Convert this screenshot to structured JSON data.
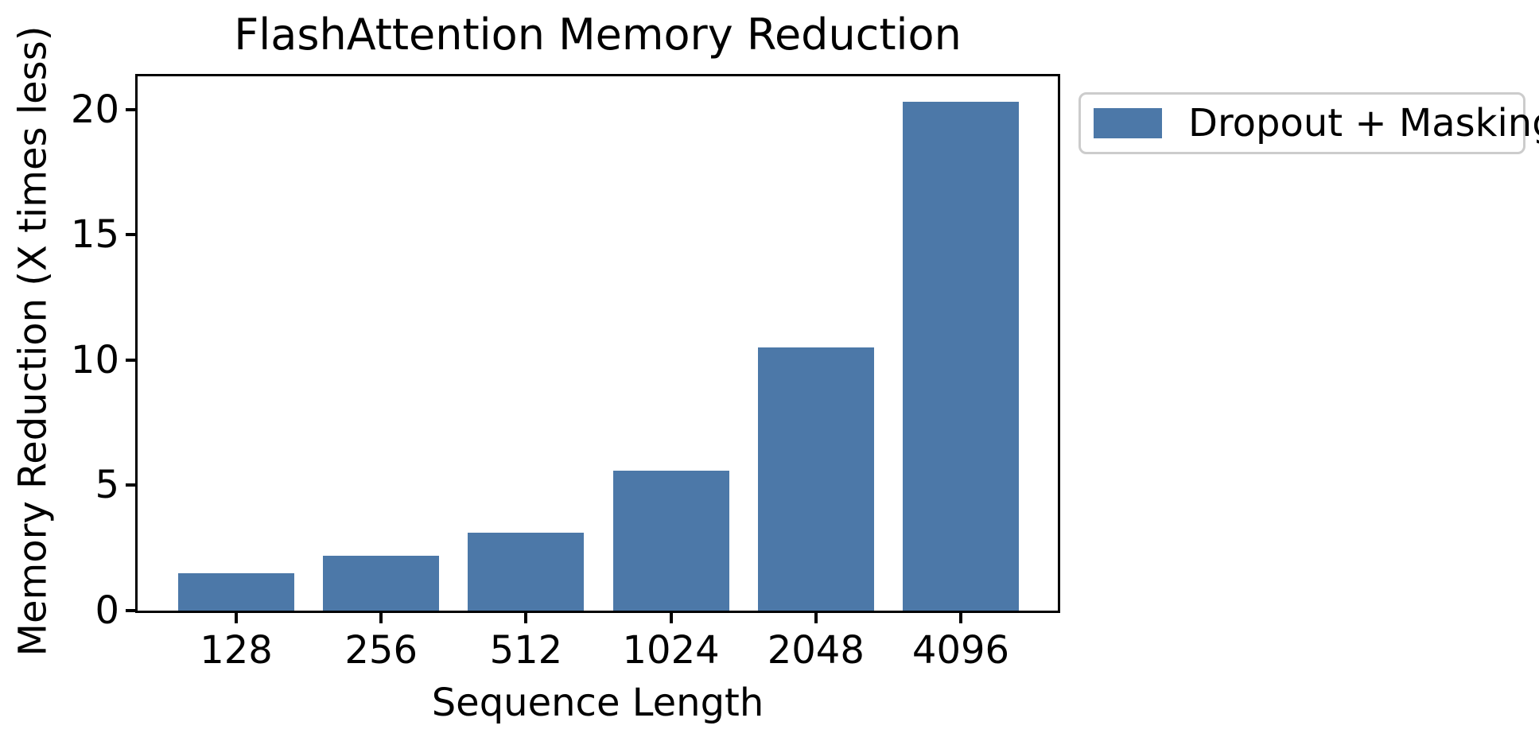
{
  "title": "FlashAttention Memory Reduction",
  "chart_data": {
    "type": "bar",
    "title": "FlashAttention Memory Reduction",
    "categories": [
      "128",
      "256",
      "512",
      "1024",
      "2048",
      "4096"
    ],
    "values": [
      1.5,
      2.2,
      3.1,
      5.6,
      10.5,
      20.3
    ],
    "series": [
      {
        "name": "Dropout + Masking",
        "values": [
          1.5,
          2.2,
          3.1,
          5.6,
          10.5,
          20.3
        ]
      }
    ],
    "xlabel": "Sequence Length",
    "ylabel": "Memory Reduction (X times less)",
    "yticks": [
      0,
      5,
      10,
      15,
      20
    ],
    "ylim": [
      0,
      21.32
    ],
    "grid": false,
    "legend_position": "outside upper right",
    "bar_color": "#4c78a8",
    "axis_color": "#000000",
    "legend_border_color": "#cccccc",
    "background_color": "#ffffff"
  },
  "legend": {
    "label": "Dropout + Masking",
    "swatch_color": "#4c78a8"
  }
}
